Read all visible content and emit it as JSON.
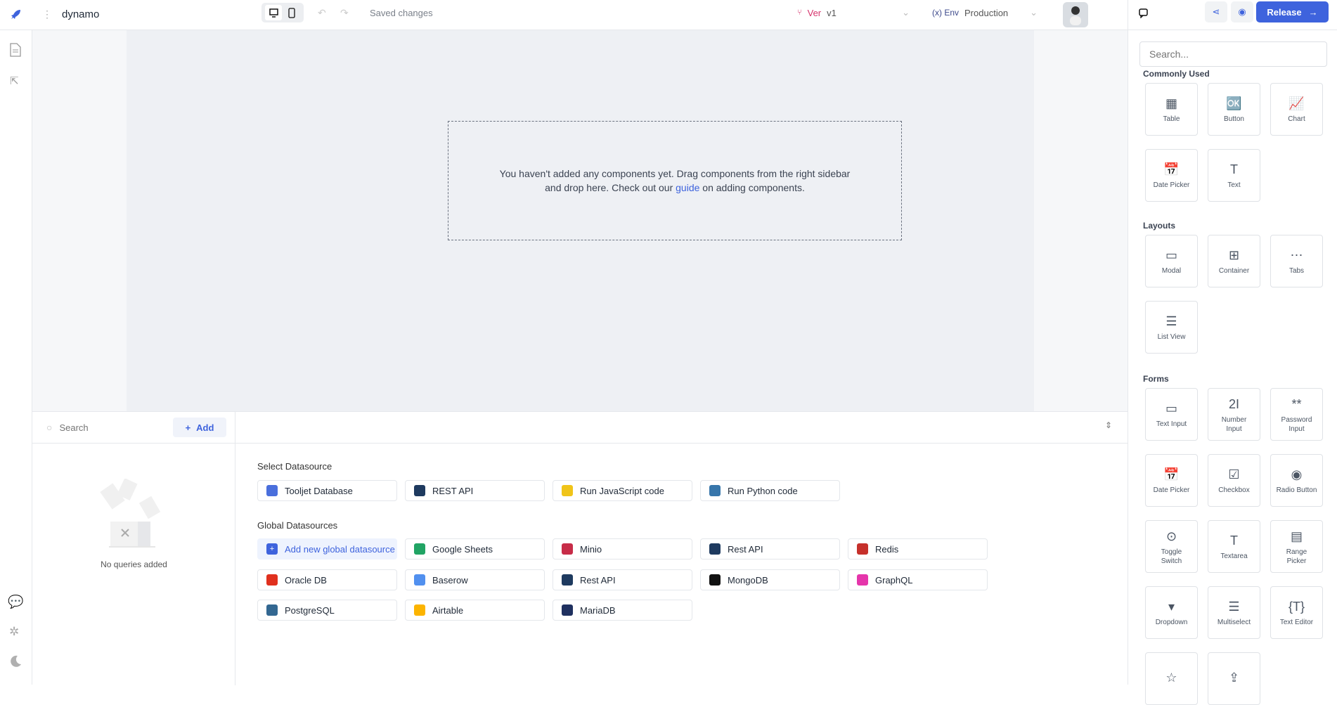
{
  "header": {
    "app_name": "dynamo",
    "save_status": "Saved changes",
    "version_label": "Ver",
    "version_value": "v1",
    "env_label": "(x) Env",
    "env_value": "Production",
    "release_label": "Release"
  },
  "canvas": {
    "empty_text_1": "You haven't added any components yet. Drag components from the right sidebar",
    "empty_text_2a": "and drop here. Check out our ",
    "empty_link": "guide",
    "empty_text_2b": " on adding components."
  },
  "queries": {
    "search_placeholder": "Search",
    "add_label": "Add",
    "empty_text": "No queries added"
  },
  "datasources": {
    "select_label": "Select Datasource",
    "select_items": [
      {
        "label": "Tooljet Database",
        "icon": "tooljet-db-icon",
        "color": "#4a6fdc"
      },
      {
        "label": "REST API",
        "icon": "rest-api-icon",
        "color": "#1e3a5f"
      },
      {
        "label": "Run JavaScript code",
        "icon": "javascript-icon",
        "color": "#f0c419"
      },
      {
        "label": "Run Python code",
        "icon": "python-icon",
        "color": "#3776ab"
      }
    ],
    "global_label": "Global Datasources",
    "add_global_label": "Add new global datasource",
    "global_items": [
      {
        "label": "Google Sheets",
        "icon": "google-sheets-icon",
        "color": "#21a464"
      },
      {
        "label": "Minio",
        "icon": "minio-icon",
        "color": "#c72c48"
      },
      {
        "label": "Rest API",
        "icon": "rest-api-icon",
        "color": "#1e3a5f"
      },
      {
        "label": "Redis",
        "icon": "redis-icon",
        "color": "#c6302b"
      },
      {
        "label": "Oracle DB",
        "icon": "oracle-icon",
        "color": "#e0301e"
      },
      {
        "label": "Baserow",
        "icon": "baserow-icon",
        "color": "#5190ef"
      },
      {
        "label": "Rest API",
        "icon": "rest-api-icon",
        "color": "#1e3a5f"
      },
      {
        "label": "MongoDB",
        "icon": "mongodb-icon",
        "color": "#111111"
      },
      {
        "label": "GraphQL",
        "icon": "graphql-icon",
        "color": "#e535ab"
      },
      {
        "label": "PostgreSQL",
        "icon": "postgresql-icon",
        "color": "#336791"
      },
      {
        "label": "Airtable",
        "icon": "airtable-icon",
        "color": "#fcb400"
      },
      {
        "label": "MariaDB",
        "icon": "mariadb-icon",
        "color": "#1f305f"
      }
    ]
  },
  "sidebar": {
    "search_placeholder": "Search...",
    "sections": [
      {
        "title": "Commonly Used",
        "items": [
          {
            "label": "Table",
            "glyph": "▦"
          },
          {
            "label": "Button",
            "glyph": "🆗"
          },
          {
            "label": "Chart",
            "glyph": "📈"
          },
          {
            "label": "Date Picker",
            "glyph": "📅"
          },
          {
            "label": "Text",
            "glyph": "T"
          }
        ]
      },
      {
        "title": "Layouts",
        "items": [
          {
            "label": "Modal",
            "glyph": "▭"
          },
          {
            "label": "Container",
            "glyph": "⊞"
          },
          {
            "label": "Tabs",
            "glyph": "⋯"
          },
          {
            "label": "List View",
            "glyph": "☰"
          }
        ]
      },
      {
        "title": "Forms",
        "items": [
          {
            "label": "Text Input",
            "glyph": "▭"
          },
          {
            "label": "Number Input",
            "glyph": "2I"
          },
          {
            "label": "Password Input",
            "glyph": "**"
          },
          {
            "label": "Date Picker",
            "glyph": "📅"
          },
          {
            "label": "Checkbox",
            "glyph": "☑"
          },
          {
            "label": "Radio Button",
            "glyph": "◉"
          },
          {
            "label": "Toggle Switch",
            "glyph": "⊙"
          },
          {
            "label": "Textarea",
            "glyph": "T"
          },
          {
            "label": "Range Picker",
            "glyph": "▤"
          },
          {
            "label": "Dropdown",
            "glyph": "▾"
          },
          {
            "label": "Multiselect",
            "glyph": "☰"
          },
          {
            "label": "Text Editor",
            "glyph": "{T}"
          },
          {
            "label": "",
            "glyph": "☆"
          },
          {
            "label": "",
            "glyph": "⇪"
          }
        ]
      }
    ]
  },
  "colors": {
    "accent": "#3e63dd",
    "canvas": "#eef0f4"
  }
}
